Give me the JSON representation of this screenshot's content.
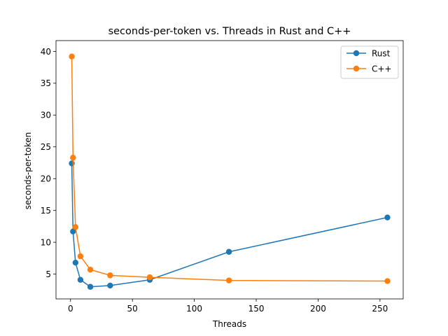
{
  "chart_data": {
    "type": "line",
    "title": "seconds-per-token vs. Threads in Rust and C++",
    "xlabel": "Threads",
    "ylabel": "seconds-per-token",
    "xlim": [
      -11.75,
      268.75
    ],
    "ylim": [
      1.1,
      41.7
    ],
    "xticks": [
      0,
      50,
      100,
      150,
      200,
      250
    ],
    "yticks": [
      5,
      10,
      15,
      20,
      25,
      30,
      35,
      40
    ],
    "grid": false,
    "legend_position": "top-right",
    "series": [
      {
        "name": "Rust",
        "color": "#1f77b4",
        "x": [
          1,
          2,
          4,
          8,
          16,
          32,
          64,
          128,
          256
        ],
        "y": [
          22.4,
          11.7,
          6.8,
          4.1,
          3.0,
          3.2,
          4.1,
          8.5,
          13.9
        ]
      },
      {
        "name": "C++",
        "color": "#ff7f0e",
        "x": [
          1,
          2,
          4,
          8,
          16,
          32,
          64,
          128,
          256
        ],
        "y": [
          39.2,
          23.3,
          12.4,
          7.8,
          5.7,
          4.8,
          4.5,
          4.0,
          3.9
        ]
      }
    ]
  }
}
